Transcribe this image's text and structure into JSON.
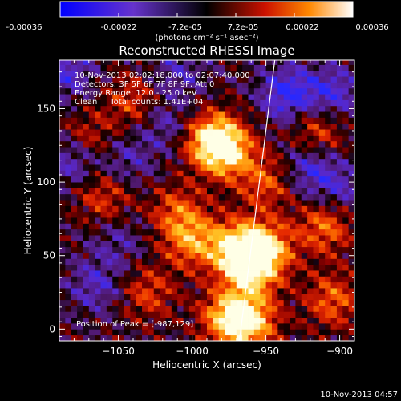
{
  "colorbar": {
    "ticks": [
      "-0.00036",
      "-0.00022",
      "-7.2e-05",
      "7.2e-05",
      "0.00022",
      "0.00036"
    ],
    "unit_label": "(photons cm⁻² s⁻¹ asec⁻²)",
    "range": [
      -0.00036,
      0.00036
    ]
  },
  "plot": {
    "title": "Reconstructed RHESSI Image",
    "info_lines": [
      "10-Nov-2013 02:02:18.000 to 02:07:40.000",
      "Detectors: 3F 5F 6F 7F 8F 9F, Att 0",
      "Energy Range: 12.0 - 25.0 keV",
      "Clean     Total counts: 1.41E+04"
    ],
    "peak_text": "Position of Peak = [-987,129]"
  },
  "footer": {
    "timestamp": "10-Nov-2013 04:57"
  },
  "chart_data": {
    "type": "heatmap",
    "title": "Reconstructed RHESSI Image",
    "xlabel": "Heliocentric X (arcsec)",
    "ylabel": "Heliocentric Y (arcsec)",
    "xlim": [
      -1090,
      -890
    ],
    "ylim": [
      -8,
      183
    ],
    "x_ticks": [
      -1050,
      -1000,
      -950,
      -900
    ],
    "y_ticks": [
      0,
      50,
      100,
      150
    ],
    "x_tick_labels": [
      "−1050",
      "−1000",
      "−950",
      "−900"
    ],
    "y_tick_labels": [
      "0",
      "50",
      "100",
      "150"
    ],
    "colormap": "blue-purple-black-red-yellow-white",
    "peak": [
      -987,
      129
    ],
    "limb_line": {
      "x": [
        -968,
        -944
      ],
      "y": [
        -8,
        183
      ]
    },
    "emission_sources": [
      {
        "x": -985,
        "y": 128,
        "w": 1.0
      },
      {
        "x": -975,
        "y": 120,
        "w": 0.55
      },
      {
        "x": -970,
        "y": 55,
        "w": 0.85
      },
      {
        "x": -950,
        "y": 55,
        "w": 0.75
      },
      {
        "x": -960,
        "y": 40,
        "w": 0.7
      },
      {
        "x": -975,
        "y": 8,
        "w": 0.8
      },
      {
        "x": -960,
        "y": 5,
        "w": 0.7
      },
      {
        "x": -1000,
        "y": 60,
        "w": 0.6
      },
      {
        "x": -1010,
        "y": 80,
        "w": 0.45
      },
      {
        "x": -1060,
        "y": 90,
        "w": 0.4
      },
      {
        "x": -1070,
        "y": 130,
        "w": 0.35
      },
      {
        "x": -1030,
        "y": 25,
        "w": 0.4
      },
      {
        "x": -910,
        "y": 70,
        "w": 0.55
      },
      {
        "x": -905,
        "y": 20,
        "w": 0.5
      },
      {
        "x": -915,
        "y": 135,
        "w": 0.45
      },
      {
        "x": -1040,
        "y": 155,
        "w": 0.4
      },
      {
        "x": -950,
        "y": 100,
        "w": 0.45
      }
    ],
    "negative_regions": [
      {
        "x": -935,
        "y": 160,
        "w": 1.0
      },
      {
        "x": -1080,
        "y": 115,
        "w": 0.7
      },
      {
        "x": -1045,
        "y": 115,
        "w": 0.5
      },
      {
        "x": -920,
        "y": 110,
        "w": 0.75
      },
      {
        "x": -1065,
        "y": 30,
        "w": 0.6
      },
      {
        "x": -1020,
        "y": 140,
        "w": 0.5
      },
      {
        "x": -905,
        "y": 160,
        "w": 0.8
      },
      {
        "x": -1010,
        "y": 175,
        "w": 0.5
      },
      {
        "x": -1085,
        "y": 175,
        "w": 0.7
      },
      {
        "x": -900,
        "y": 95,
        "w": 0.55
      },
      {
        "x": -1050,
        "y": 60,
        "w": 0.4
      }
    ]
  }
}
